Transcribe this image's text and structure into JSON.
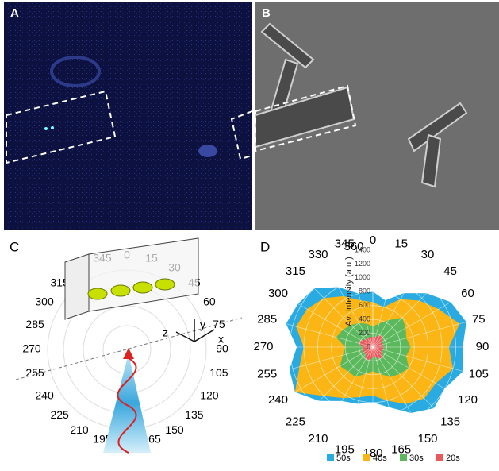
{
  "panels": {
    "a": "A",
    "b": "B",
    "c": "C",
    "d": "D"
  },
  "panel_c": {
    "angles": [
      "0",
      "15",
      "30",
      "45",
      "60",
      "75",
      "90",
      "105",
      "120",
      "135",
      "150",
      "165",
      "180",
      "195",
      "210",
      "225",
      "240",
      "255",
      "270",
      "285",
      "300",
      "315",
      "330",
      "345"
    ],
    "axes": {
      "x": "x",
      "y": "y",
      "z": "z"
    }
  },
  "chart_data": {
    "type": "radar",
    "axis_label": "Av. Intensity (a.u.)",
    "categories": [
      "0",
      "15",
      "30",
      "45",
      "60",
      "75",
      "90",
      "105",
      "120",
      "135",
      "150",
      "165",
      "180",
      "195",
      "210",
      "225",
      "240",
      "255",
      "270",
      "285",
      "300",
      "315",
      "330",
      "345",
      "360"
    ],
    "rlim": [
      0,
      1400
    ],
    "rticks": [
      0,
      200,
      400,
      600,
      800,
      1000,
      1200,
      1400
    ],
    "legend": "bottom",
    "series": [
      {
        "name": "50s",
        "color": "#29abe2",
        "values": [
          800,
          700,
          900,
          1100,
          1300,
          1400,
          1300,
          1350,
          1200,
          1250,
          1100,
          900,
          800,
          850,
          900,
          1100,
          1300,
          1250,
          1100,
          1300,
          1250,
          1200,
          1000,
          800,
          800
        ]
      },
      {
        "name": "40s",
        "color": "#fbb615",
        "values": [
          650,
          600,
          800,
          950,
          1100,
          1300,
          1100,
          1200,
          1050,
          1050,
          950,
          800,
          700,
          750,
          850,
          1000,
          1300,
          1100,
          1000,
          1150,
          1100,
          1000,
          850,
          700,
          650
        ]
      },
      {
        "name": "30s",
        "color": "#5cb85c",
        "values": [
          300,
          350,
          450,
          600,
          550,
          500,
          550,
          500,
          600,
          550,
          500,
          400,
          350,
          400,
          500,
          500,
          550,
          450,
          400,
          550,
          500,
          450,
          400,
          350,
          300
        ]
      },
      {
        "name": "20s",
        "color": "#e8585c",
        "values": [
          150,
          150,
          200,
          200,
          150,
          150,
          150,
          150,
          150,
          200,
          200,
          150,
          150,
          200,
          200,
          150,
          150,
          150,
          150,
          200,
          200,
          150,
          150,
          150,
          150
        ]
      }
    ]
  }
}
